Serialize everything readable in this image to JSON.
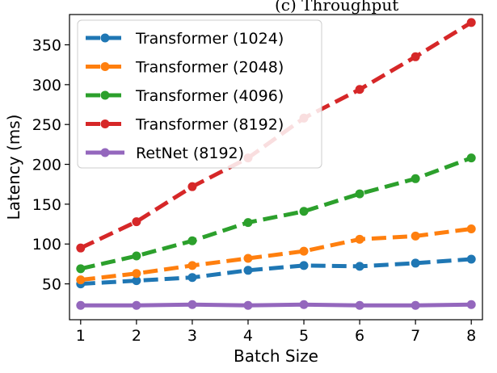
{
  "chart_data": {
    "type": "line",
    "title": "(c) Throughput",
    "xlabel": "Batch Size",
    "ylabel": "Latency (ms)",
    "x": [
      1,
      2,
      3,
      4,
      5,
      6,
      7,
      8
    ],
    "xlim": [
      0.8,
      8.2
    ],
    "ylim": [
      5,
      388
    ],
    "xticks": [
      1,
      2,
      3,
      4,
      5,
      6,
      7,
      8
    ],
    "yticks": [
      50,
      100,
      150,
      200,
      250,
      300,
      350
    ],
    "grid": false,
    "legend_position": "upper-left",
    "series": [
      {
        "name": "Transformer (1024)",
        "color": "#1f77b4",
        "style": "dashed",
        "values": [
          50,
          54,
          58,
          67,
          73,
          72,
          76,
          81
        ]
      },
      {
        "name": "Transformer (2048)",
        "color": "#ff7f0e",
        "style": "dashed",
        "values": [
          55,
          63,
          73,
          82,
          91,
          106,
          110,
          119
        ]
      },
      {
        "name": "Transformer (4096)",
        "color": "#2ca02c",
        "style": "dashed",
        "values": [
          69,
          85,
          104,
          127,
          141,
          163,
          182,
          208
        ]
      },
      {
        "name": "Transformer (8192)",
        "color": "#d62728",
        "style": "dashed",
        "values": [
          95,
          128,
          172,
          208,
          258,
          294,
          335,
          378
        ]
      },
      {
        "name": "RetNet (8192)",
        "color": "#9467bd",
        "style": "solid",
        "values": [
          23,
          23,
          24,
          23,
          24,
          23,
          23,
          24
        ]
      }
    ]
  }
}
